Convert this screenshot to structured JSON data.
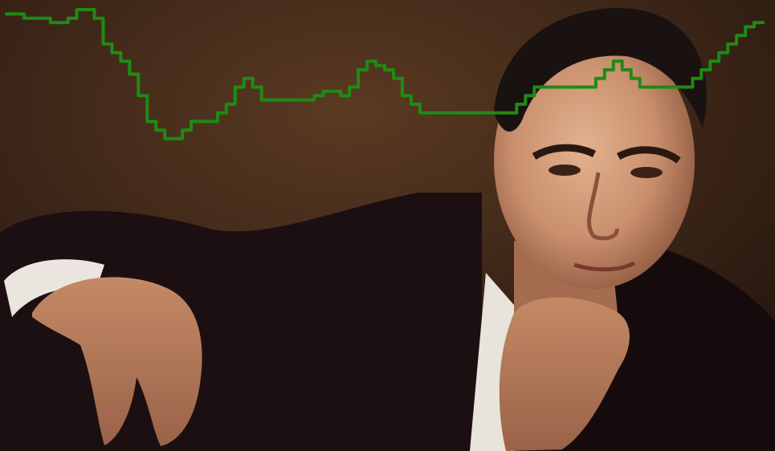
{
  "image": {
    "description_tag": "portrait-with-line-overlay",
    "colors": {
      "background": "#3a2417",
      "background_dark": "#1f1009",
      "suit": "#1c0f12",
      "chair": "#6e1a22",
      "skin": "#c98f6d",
      "skin_shadow": "#8f5a40",
      "hair": "#1a1210",
      "shirt": "#e8e4dc",
      "line": "#1f8a15"
    }
  },
  "chart_data": {
    "type": "line",
    "series": [
      {
        "values": [
          99,
          99,
          98,
          98,
          98,
          97,
          97,
          98,
          100,
          100,
          98,
          92,
          90,
          88,
          85,
          80,
          74,
          72,
          70,
          70,
          72,
          74,
          74,
          74,
          76,
          78,
          82,
          84,
          82,
          79,
          79,
          79,
          79,
          79,
          79,
          80,
          81,
          81,
          80,
          82,
          86,
          88,
          87,
          86,
          84,
          80,
          78,
          76,
          76,
          76,
          76,
          76,
          76,
          76,
          76,
          76,
          76,
          76,
          78,
          80,
          82,
          82,
          82,
          82,
          82,
          82,
          82,
          84,
          86,
          88,
          86,
          84,
          82,
          82,
          82,
          82,
          82,
          82,
          84,
          86,
          88,
          90,
          92,
          94,
          96,
          97,
          97
        ]
      }
    ]
  }
}
